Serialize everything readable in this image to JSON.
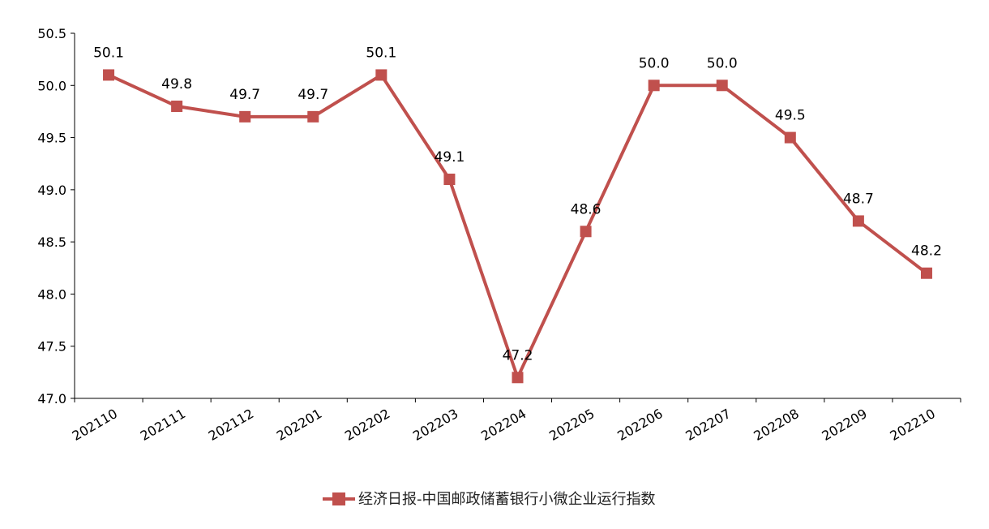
{
  "chart_data": {
    "type": "line",
    "categories": [
      "202110",
      "202111",
      "202112",
      "202201",
      "202202",
      "202203",
      "202204",
      "202205",
      "202206",
      "202207",
      "202208",
      "202209",
      "202210"
    ],
    "series": [
      {
        "name": "经济日报-中国邮政储蓄银行小微企业运行指数",
        "values": [
          50.1,
          49.8,
          49.7,
          49.7,
          50.1,
          49.1,
          47.2,
          48.6,
          50.0,
          50.0,
          49.5,
          48.7,
          48.2
        ],
        "labels": [
          "50.1",
          "49.8",
          "49.7",
          "49.7",
          "50.1",
          "49.1",
          "47.2",
          "48.6",
          "50.0",
          "50.0",
          "49.5",
          "48.7",
          "48.2"
        ],
        "color": "#c0504d"
      }
    ],
    "yticks": [
      "47.0",
      "47.5",
      "48.0",
      "48.5",
      "49.0",
      "49.5",
      "50.0",
      "50.5"
    ],
    "ylim": [
      47.0,
      50.5
    ],
    "title": "",
    "xlabel": "",
    "ylabel": "",
    "grid": false,
    "legend_position": "bottom"
  }
}
